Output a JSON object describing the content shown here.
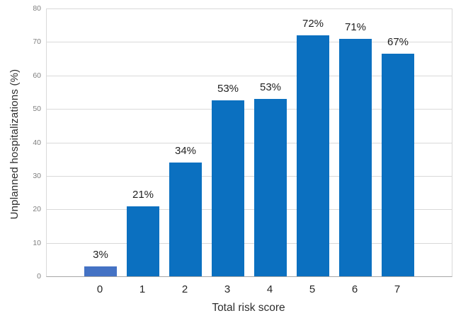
{
  "chart_data": {
    "type": "bar",
    "title": "",
    "xlabel": "Total risk score",
    "ylabel": "Unplanned hospitalizations (%)",
    "categories": [
      "0",
      "1",
      "2",
      "3",
      "4",
      "5",
      "6",
      "7"
    ],
    "values": [
      3,
      21,
      34,
      53,
      53,
      72,
      71,
      67
    ],
    "data_labels": [
      "3%",
      "21%",
      "34%",
      "53%",
      "53%",
      "72%",
      "71%",
      "67%"
    ],
    "bar_heights_pct": [
      3,
      21,
      34,
      52.5,
      53,
      72,
      71,
      66.5
    ],
    "ylim": [
      0,
      80
    ],
    "ytick_step": 10,
    "yticks": [
      "0",
      "10",
      "20",
      "30",
      "40",
      "50",
      "60",
      "70",
      "80"
    ],
    "grid": "horizontal-light",
    "legend": "none",
    "colors": {
      "bar_first": "#4472c4",
      "bar_default": "#0b70c0",
      "gridline": "#d9d9d9",
      "axis_line": "#a6a6a6",
      "y_tick_label": "#7f7f7f",
      "x_tick_label": "#262626",
      "data_label": "#1f1f1f",
      "axis_title": "#2e2e2e",
      "background": "#ffffff"
    }
  }
}
